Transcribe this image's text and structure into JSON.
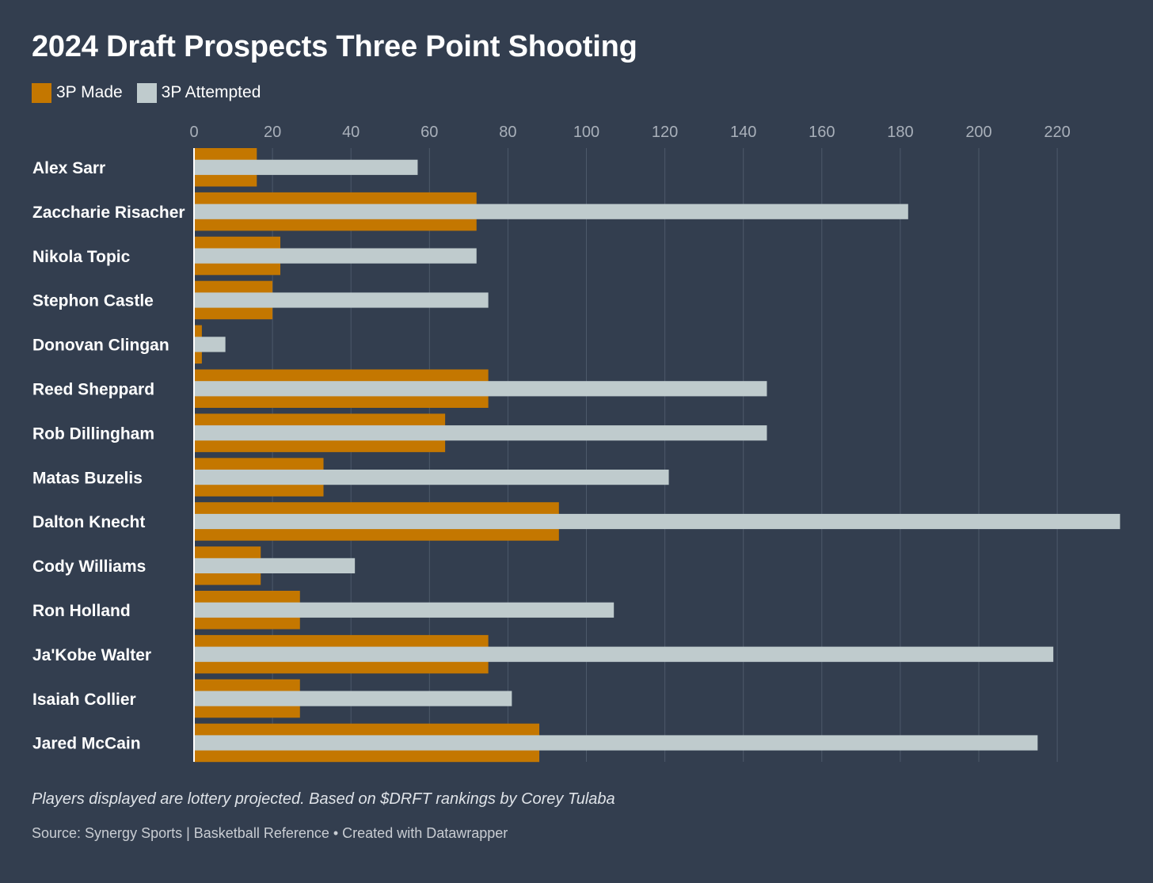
{
  "colors": {
    "background": "#333e4f",
    "made": "#c47700",
    "attempted": "#bfcbcd",
    "grid": "#4d596a",
    "axis": "#ffffff",
    "tick_text": "#a9b0ba"
  },
  "chart_data": {
    "type": "bar",
    "orientation": "horizontal",
    "title": "2024 Draft Prospects Three Point Shooting",
    "legend": [
      "3P Made",
      "3P Attempted"
    ],
    "legend_position": "top-left",
    "categories": [
      "Alex Sarr",
      "Zaccharie Risacher",
      "Nikola Topic",
      "Stephon Castle",
      "Donovan Clingan",
      "Reed Sheppard",
      "Rob Dillingham",
      "Matas Buzelis",
      "Dalton Knecht",
      "Cody Williams",
      "Ron Holland",
      "Ja'Kobe Walter",
      "Isaiah Collier",
      "Jared McCain"
    ],
    "series": [
      {
        "name": "3P Made",
        "values": [
          16,
          72,
          22,
          20,
          2,
          75,
          64,
          33,
          93,
          17,
          27,
          75,
          27,
          88
        ]
      },
      {
        "name": "3P Attempted",
        "values": [
          57,
          182,
          72,
          75,
          8,
          146,
          146,
          121,
          236,
          41,
          107,
          219,
          81,
          215
        ]
      }
    ],
    "xlim": [
      0,
      236
    ],
    "xticks": [
      "0",
      "20",
      "40",
      "60",
      "80",
      "100",
      "120",
      "140",
      "160",
      "180",
      "200",
      "220"
    ],
    "grid": true,
    "note": "Players displayed are lottery projected. Based on $DRFT rankings by Corey Tulaba",
    "source": "Source: Synergy Sports | Basketball Reference • Created with Datawrapper"
  }
}
